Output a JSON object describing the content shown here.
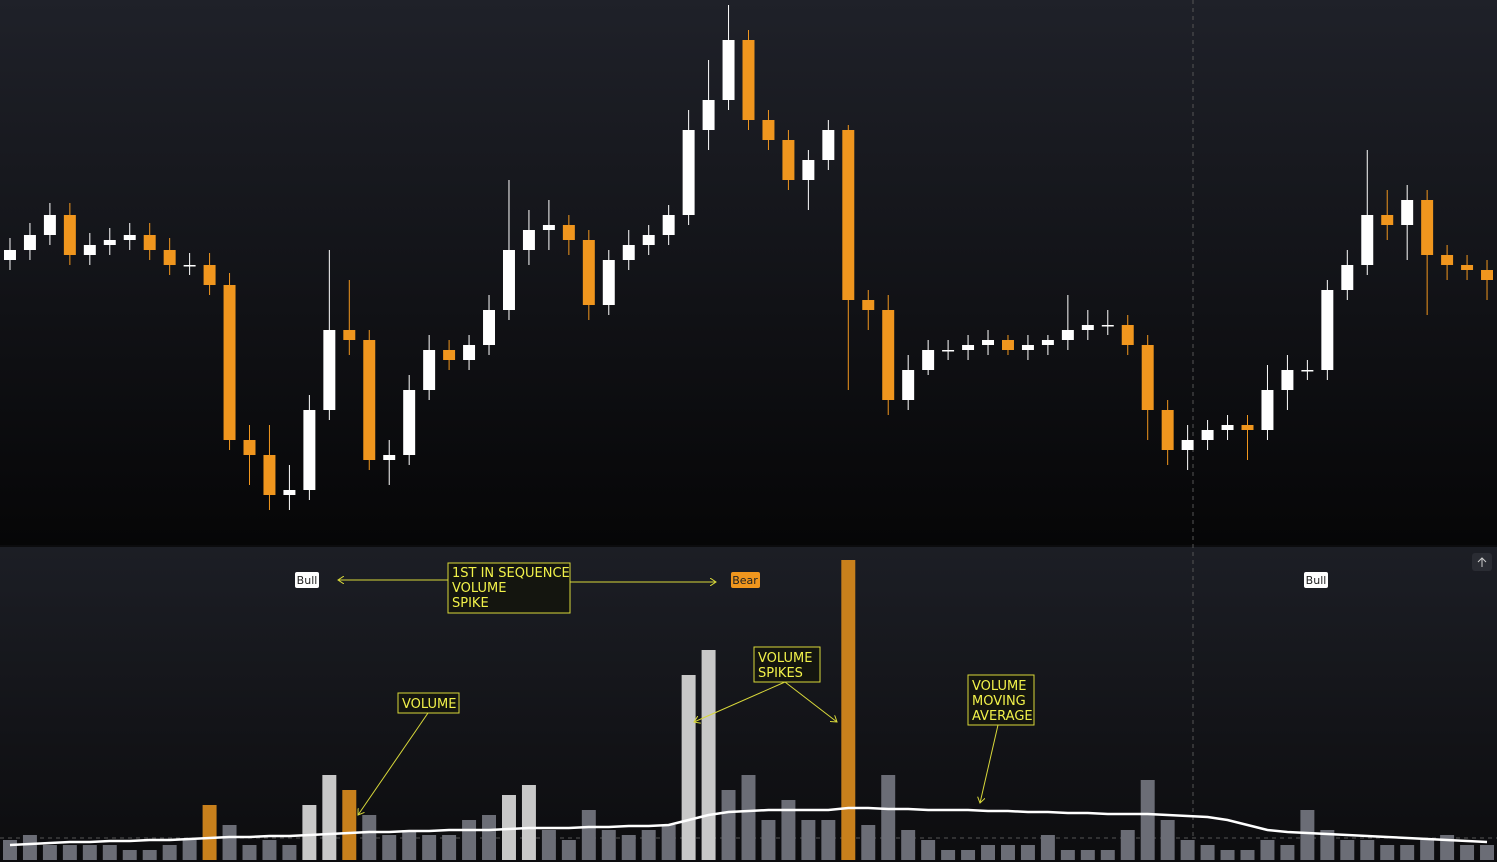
{
  "chart_data": {
    "type": "candlestick",
    "up_color": "#ffffff",
    "down_color": "#f0961e",
    "volume_color": "#6b6d76",
    "volume_up_spike_color": "#c8c8c8",
    "volume_down_spike_color": "#c8801c",
    "ma_color": "#ffffff",
    "ylim": [
      5,
      550
    ],
    "volume_ylim": [
      0,
      305
    ],
    "open": [
      290,
      300,
      315,
      335,
      295,
      305,
      310,
      315,
      300,
      285,
      285,
      265,
      110,
      95,
      55,
      60,
      140,
      220,
      210,
      90,
      95,
      160,
      200,
      190,
      205,
      240,
      300,
      320,
      325,
      310,
      245,
      290,
      305,
      315,
      335,
      420,
      450,
      510,
      430,
      410,
      370,
      390,
      420,
      250,
      240,
      150,
      180,
      200,
      200,
      205,
      210,
      200,
      205,
      210,
      220,
      225,
      225,
      205,
      140,
      100,
      110,
      120,
      125,
      120,
      160,
      180,
      180,
      260,
      285,
      335,
      325,
      350,
      295,
      285,
      280
    ],
    "high": [
      312,
      327,
      347,
      347,
      317,
      322,
      327,
      327,
      312,
      297,
      297,
      277,
      125,
      125,
      85,
      155,
      300,
      270,
      220,
      110,
      175,
      215,
      210,
      215,
      255,
      370,
      340,
      350,
      335,
      320,
      300,
      320,
      325,
      345,
      440,
      490,
      545,
      520,
      440,
      420,
      400,
      430,
      425,
      260,
      255,
      195,
      210,
      210,
      215,
      220,
      215,
      215,
      215,
      255,
      240,
      240,
      235,
      215,
      150,
      125,
      130,
      135,
      135,
      185,
      195,
      190,
      270,
      300,
      400,
      360,
      365,
      360,
      305,
      295,
      290
    ],
    "low": [
      280,
      290,
      305,
      285,
      285,
      295,
      300,
      290,
      275,
      275,
      255,
      100,
      65,
      40,
      40,
      50,
      130,
      195,
      80,
      65,
      85,
      150,
      180,
      180,
      195,
      230,
      285,
      300,
      295,
      230,
      235,
      280,
      295,
      305,
      325,
      400,
      440,
      420,
      400,
      360,
      340,
      380,
      160,
      220,
      135,
      140,
      175,
      190,
      190,
      195,
      195,
      190,
      195,
      200,
      210,
      215,
      195,
      110,
      85,
      80,
      100,
      110,
      90,
      110,
      140,
      170,
      170,
      250,
      275,
      310,
      290,
      235,
      270,
      270,
      250
    ],
    "close": [
      300,
      315,
      335,
      295,
      305,
      310,
      315,
      300,
      285,
      285,
      265,
      110,
      95,
      55,
      60,
      140,
      220,
      210,
      90,
      95,
      160,
      200,
      190,
      205,
      240,
      300,
      320,
      325,
      310,
      245,
      290,
      305,
      315,
      335,
      420,
      450,
      510,
      430,
      410,
      370,
      390,
      420,
      250,
      240,
      150,
      180,
      200,
      200,
      205,
      210,
      200,
      205,
      210,
      220,
      225,
      225,
      205,
      140,
      100,
      110,
      120,
      125,
      120,
      160,
      180,
      180,
      260,
      285,
      335,
      325,
      350,
      295,
      285,
      280,
      270
    ],
    "volume": [
      20,
      25,
      15,
      15,
      15,
      15,
      10,
      10,
      15,
      20,
      55,
      35,
      15,
      20,
      15,
      55,
      85,
      70,
      45,
      25,
      30,
      25,
      25,
      40,
      45,
      65,
      75,
      30,
      20,
      50,
      30,
      25,
      30,
      35,
      185,
      210,
      70,
      85,
      40,
      60,
      40,
      40,
      300,
      35,
      85,
      30,
      20,
      10,
      10,
      15,
      15,
      15,
      25,
      10,
      10,
      10,
      30,
      80,
      40,
      20,
      15,
      10,
      10,
      20,
      15,
      50,
      30,
      20,
      20,
      15,
      15,
      20,
      25,
      15,
      15
    ],
    "volume_ma": [
      15,
      16,
      17,
      18,
      18,
      19,
      19,
      20,
      20,
      21,
      22,
      23,
      23,
      24,
      24,
      25,
      26,
      27,
      28,
      28,
      29,
      29,
      30,
      30,
      30,
      31,
      32,
      32,
      32,
      33,
      33,
      34,
      34,
      35,
      40,
      45,
      48,
      49,
      50,
      50,
      50,
      50,
      52,
      52,
      51,
      51,
      50,
      50,
      50,
      49,
      49,
      48,
      48,
      47,
      47,
      46,
      46,
      46,
      45,
      44,
      43,
      40,
      35,
      30,
      28,
      27,
      26,
      25,
      24,
      23,
      22,
      21,
      20,
      19,
      18
    ],
    "markers": [
      {
        "label": "Bull"
      },
      {
        "label": "Bear"
      },
      {
        "label": "Bull"
      }
    ],
    "annotations": [
      {
        "lines": [
          "1ST IN SEQUENCE",
          "VOLUME",
          "SPIKE"
        ]
      },
      {
        "lines": [
          "VOLUME"
        ]
      },
      {
        "lines": [
          "VOLUME",
          "SPIKES"
        ]
      },
      {
        "lines": [
          "VOLUME",
          "MOVING",
          "AVERAGE"
        ]
      }
    ]
  }
}
